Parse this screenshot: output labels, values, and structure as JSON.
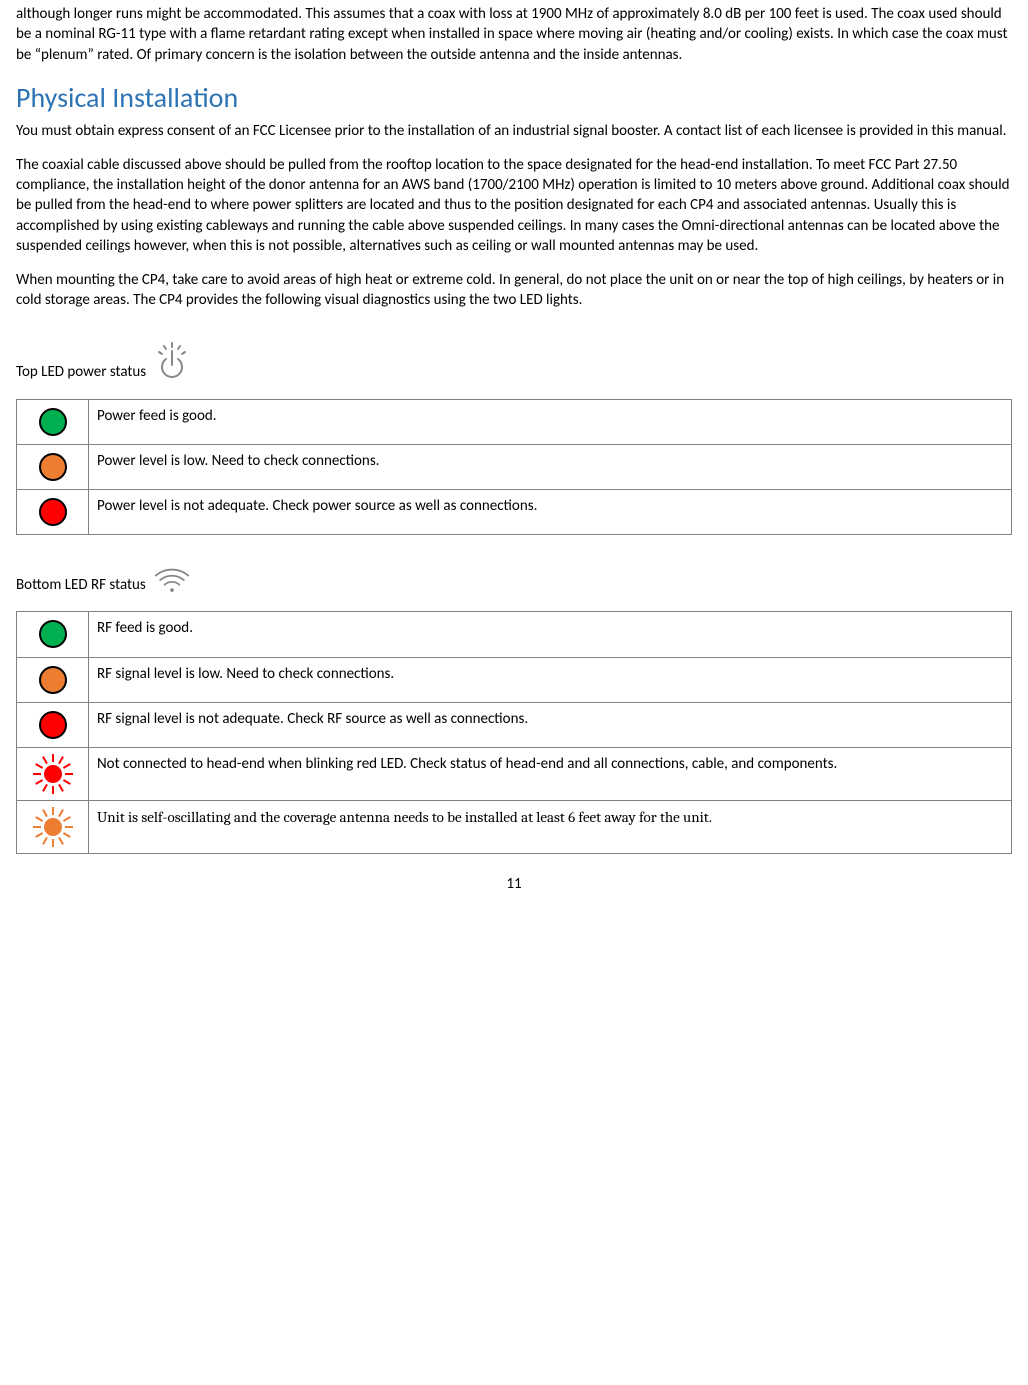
{
  "intro_para": "although longer runs might be accommodated. This assumes that a coax with loss at 1900 MHz of approximately 8.0 dB per 100 feet is used. The coax used should be a nominal RG-11 type with a flame retardant rating except when installed in space where moving air (heating and/or cooling) exists. In which case the coax must be “plenum” rated. Of primary concern is the isolation between the outside antenna and the inside antennas.",
  "heading": "Physical Installation",
  "para1": "You must obtain express consent of an FCC Licensee prior to the installation of an industrial signal booster.  A contact list of each licensee is provided in this manual.",
  "para2": "The coaxial cable discussed above should be pulled from the rooftop location to the space designated for the head-end installation. To meet FCC Part 27.50 compliance, the installation height of the donor antenna for an AWS band (1700/2100 MHz) operation is limited to 10 meters above ground.  Additional coax should be pulled from the head-end to where power splitters are located and thus to the position designated for each CP4 and associated antennas. Usually this is accomplished by using existing cableways and running the cable above suspended ceilings. In many cases the Omni-directional antennas can be located above the suspended ceilings however, when this is not possible, alternatives such as ceiling or wall mounted antennas may be used.",
  "para3": "When mounting the CP4, take care to avoid areas of high heat or extreme cold. In general, do not place the unit on or near the top of high ceilings, by heaters or in cold storage areas.  The CP4 provides the following visual diagnostics using the two LED lights.",
  "top_led_label": "Top LED power status",
  "bottom_led_label": "Bottom LED RF status",
  "power_table": {
    "rows": [
      {
        "color": "green",
        "text": "Power feed is good."
      },
      {
        "color": "orange",
        "text": "Power level is low.  Need to check connections."
      },
      {
        "color": "red",
        "text": "Power level is not adequate.  Check power source as well as connections."
      }
    ]
  },
  "rf_table": {
    "rows": [
      {
        "color": "green",
        "blink": false,
        "text": "RF feed is good.",
        "serif": false
      },
      {
        "color": "orange",
        "blink": false,
        "text": "RF signal level is low.  Need to check connections.",
        "serif": false
      },
      {
        "color": "red",
        "blink": false,
        "text": "RF signal level is not adequate.  Check RF source as well as connections.",
        "serif": false
      },
      {
        "color": "red",
        "blink": true,
        "text": "Not connected to head-end when blinking red LED.  Check status of head-end and all connections, cable, and components.",
        "serif": false
      },
      {
        "color": "orange",
        "blink": true,
        "text": "Unit is self-oscillating and the coverage antenna needs to be installed at least 6 feet away for the unit.",
        "serif": true
      }
    ]
  },
  "page_number": "11",
  "colors": {
    "heading": "#2e74b5",
    "green": "#00b050",
    "orange": "#ed7d31",
    "red": "#ff0000"
  }
}
